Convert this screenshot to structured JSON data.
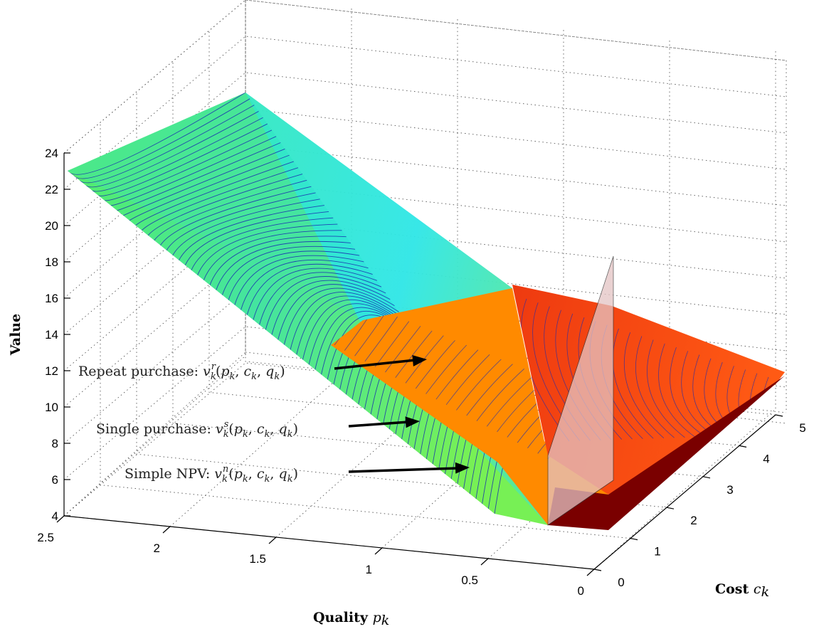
{
  "chart_data": {
    "type": "surface",
    "zlabel": "Value",
    "xlabel": "Quality",
    "xlabel_symbol": "p_k",
    "ylabel": "Cost",
    "ylabel_symbol": "c_k",
    "xlim": [
      0,
      2.5
    ],
    "ylim": [
      0,
      5
    ],
    "zlim": [
      4,
      24
    ],
    "x_ticks": [
      "0",
      "0.5",
      "1",
      "1.5",
      "2",
      "2.5"
    ],
    "y_ticks": [
      "0",
      "1",
      "2",
      "3",
      "4",
      "5"
    ],
    "z_ticks": [
      "4",
      "6",
      "8",
      "10",
      "12",
      "14",
      "16",
      "18",
      "20",
      "22",
      "24"
    ],
    "grid": true,
    "surfaces": [
      {
        "name": "Simple NPV",
        "label": "Simple NPV: v_k^n(p_k, c_k, q_k)",
        "color": "#66ee55"
      },
      {
        "name": "Single purchase",
        "label": "Single purchase: v_k^s(p_k, c_k, q_k)",
        "color": "#ff8a00"
      },
      {
        "name": "Repeat purchase",
        "label": "Repeat purchase: v_k^r(p_k, c_k, q_k)",
        "color": "#ff4a14"
      }
    ],
    "annotations": [
      {
        "prefix": "Repeat purchase: ",
        "sup": "r"
      },
      {
        "prefix": "Single purchase: ",
        "sup": "s"
      },
      {
        "prefix": "Simple NPV: ",
        "sup": "n"
      }
    ],
    "colors": {
      "cyan": "#2ee6d6",
      "green": "#66ee55",
      "orange": "#ff8a00",
      "red": "#ff4a14",
      "darkred": "#7a0000",
      "plane": "#e4c4c4",
      "contour": "#1a2bb0"
    }
  }
}
